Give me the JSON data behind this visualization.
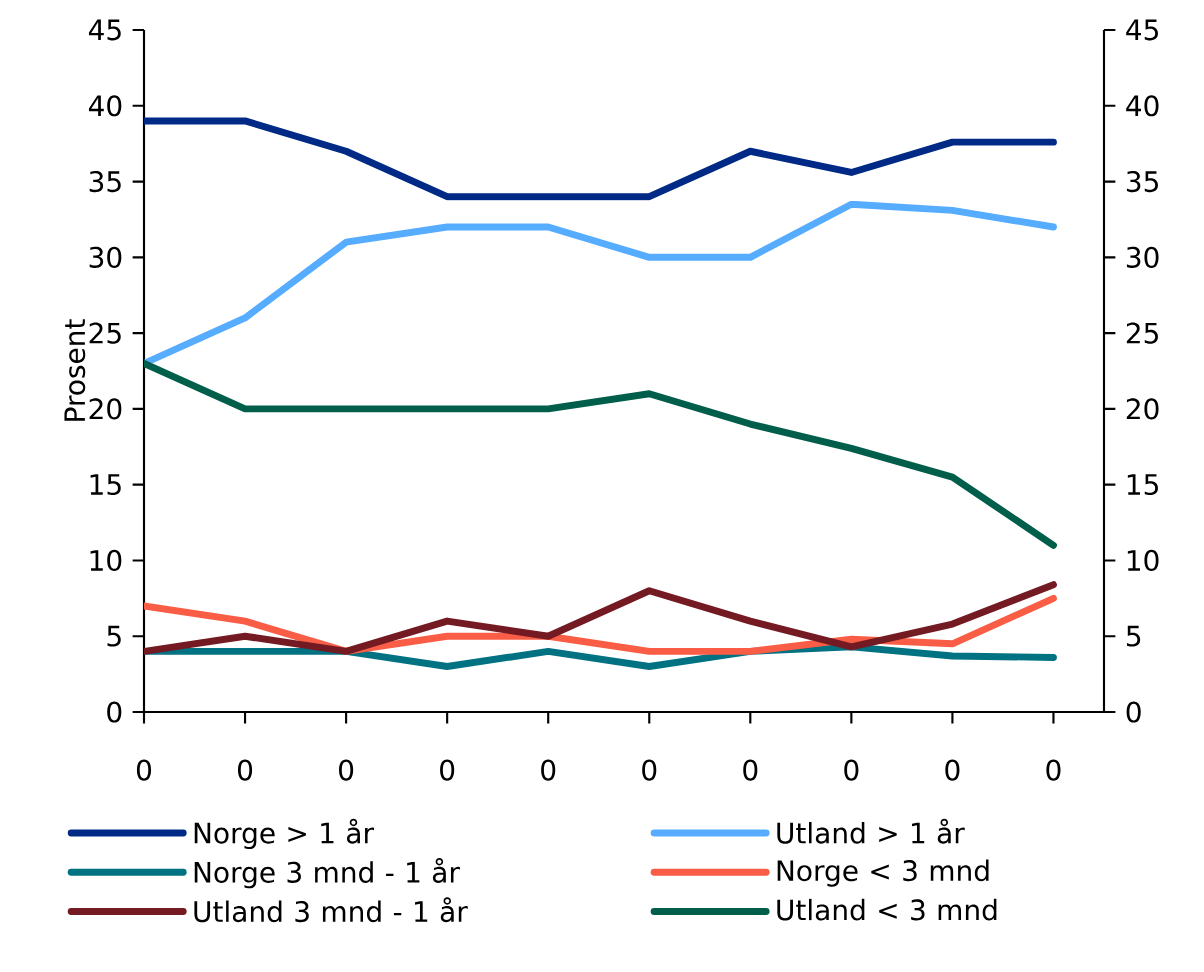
{
  "chart_data": {
    "type": "line",
    "ylabel": "Prosent",
    "categories": [
      "0",
      "0",
      "0",
      "0",
      "0",
      "0",
      "0",
      "0",
      "0",
      "0"
    ],
    "series": [
      {
        "name": "Norge > 1 år",
        "color": "#002a85",
        "values": [
          39,
          39,
          37,
          34,
          34,
          34,
          37,
          35.6,
          37.6,
          37.6
        ]
      },
      {
        "name": "Utland > 1 år",
        "color": "#56acff",
        "values": [
          23,
          26,
          31,
          32,
          32,
          30,
          30,
          33.5,
          33.1,
          32
        ]
      },
      {
        "name": "Norge 3 mnd - 1 år",
        "color": "#007282",
        "values": [
          4,
          4,
          4,
          3,
          4,
          3,
          4,
          4.3,
          3.7,
          3.6
        ]
      },
      {
        "name": "Norge < 3 mnd",
        "color": "#fa5d45",
        "values": [
          7,
          6,
          4,
          5,
          5,
          4,
          4,
          4.8,
          4.5,
          7.5
        ]
      },
      {
        "name": "Utland 3 mnd - 1 år",
        "color": "#741a23",
        "values": [
          4,
          5,
          4,
          6,
          5,
          8,
          6,
          4.3,
          5.8,
          8.4
        ]
      },
      {
        "name": "Utland < 3 mnd",
        "color": "#005e4a",
        "values": [
          23,
          20,
          20,
          20,
          20,
          21,
          19,
          17.4,
          15.5,
          11
        ]
      }
    ],
    "ylim": [
      0,
      45
    ],
    "yticks": [
      0,
      5,
      10,
      15,
      20,
      25,
      30,
      35,
      40,
      45
    ],
    "y2lim": [
      0,
      45
    ],
    "y2ticks": [
      0,
      5,
      10,
      15,
      20,
      25,
      30,
      35,
      40,
      45
    ],
    "grid": false,
    "legend": "bottom",
    "marker": "none",
    "line_style": "solid"
  }
}
